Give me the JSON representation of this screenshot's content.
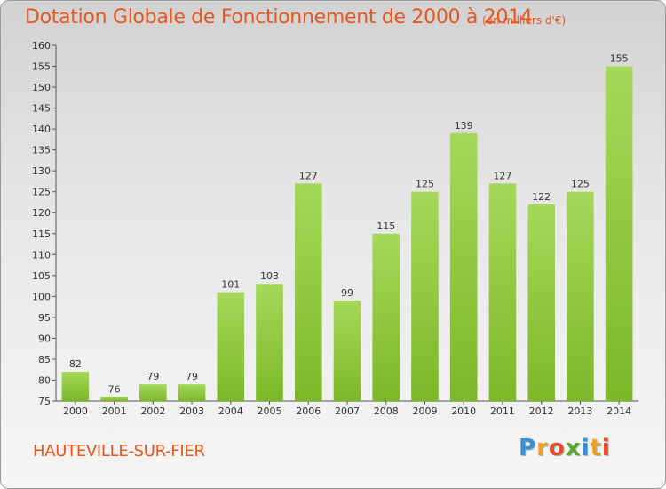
{
  "title": "Dotation Globale de Fonctionnement de 2000 à 2014",
  "unit": "(en milliers d'€)",
  "commune": "HAUTEVILLE-SUR-FIER",
  "logo": {
    "letters": [
      "P",
      "r",
      "o",
      "x",
      "i",
      "t",
      "i"
    ],
    "colors": [
      "#3a8fd6",
      "#f0a020",
      "#e84c2a",
      "#5aa832",
      "#3a8fd6",
      "#f0a020",
      "#e84c2a"
    ]
  },
  "chart_data": {
    "type": "bar",
    "title": "Dotation Globale de Fonctionnement de 2000 à 2014",
    "categories": [
      "2000",
      "2001",
      "2002",
      "2003",
      "2004",
      "2005",
      "2006",
      "2007",
      "2008",
      "2009",
      "2010",
      "2011",
      "2012",
      "2013",
      "2014"
    ],
    "values": [
      82,
      76,
      79,
      79,
      101,
      103,
      127,
      99,
      115,
      125,
      139,
      127,
      122,
      125,
      155
    ],
    "ylim": [
      75,
      160
    ],
    "yticks": [
      75,
      80,
      85,
      90,
      95,
      100,
      105,
      110,
      115,
      120,
      125,
      130,
      135,
      140,
      145,
      150,
      155,
      160
    ],
    "grid": false,
    "bar_color": "#7cb828",
    "bar_color_light": "#a6d85a"
  }
}
